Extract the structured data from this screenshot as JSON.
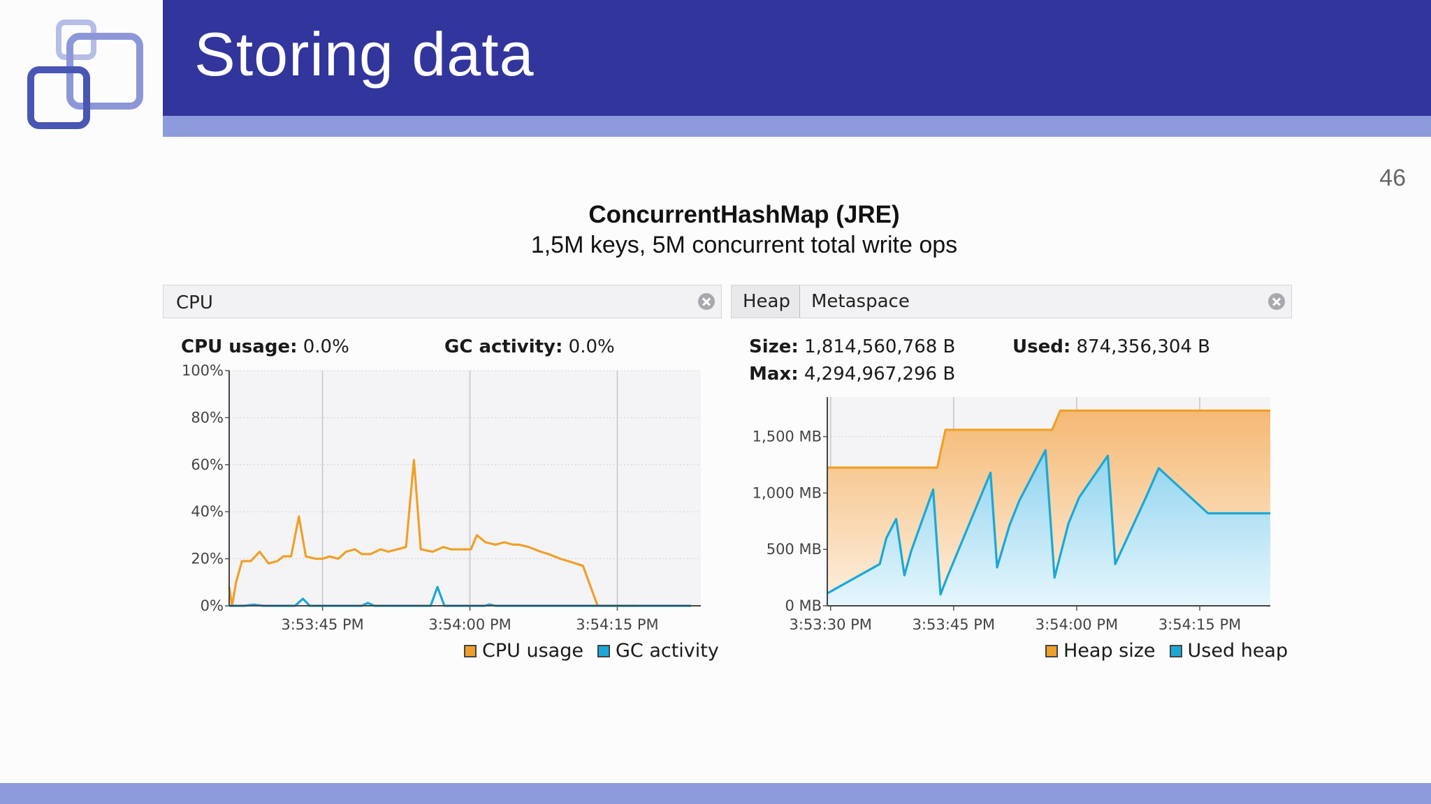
{
  "slide": {
    "title": "Storing data",
    "page_number": "46",
    "heading": "ConcurrentHashMap (JRE)",
    "subheading": "1,5M keys, 5M concurrent total write ops"
  },
  "colors": {
    "header": "#31359c",
    "band": "#8c9bdc",
    "orange": "#f0a028",
    "blue": "#1aa8d8"
  },
  "cpu_panel": {
    "tab_label": "CPU",
    "stats": [
      {
        "label": "CPU usage:",
        "value": "0.0%"
      },
      {
        "label": "GC activity:",
        "value": "0.0%"
      }
    ],
    "close_icon": "close-circle-icon"
  },
  "heap_panel": {
    "tabs": [
      "Heap",
      "Metaspace"
    ],
    "stats": [
      {
        "label": "Size:",
        "value": "1,814,560,768 B"
      },
      {
        "label": "Used:",
        "value": "874,356,304 B"
      },
      {
        "label": "Max:",
        "value": "4,294,967,296 B"
      }
    ],
    "close_icon": "close-circle-icon"
  },
  "chart_data": [
    {
      "type": "line",
      "name": "cpu",
      "ylim": [
        0,
        100
      ],
      "y_ticks": [
        "0%",
        "20%",
        "40%",
        "60%",
        "80%",
        "100%"
      ],
      "y_tick_values": [
        0,
        20,
        40,
        60,
        80,
        100
      ],
      "x_ticks": [
        "3:53:45 PM",
        "3:54:00 PM",
        "3:54:15 PM"
      ],
      "x_tick_values": [
        10,
        25,
        40
      ],
      "xlim": [
        0.5,
        48.5
      ],
      "grid": true,
      "legend_position": "bottom-right",
      "series": [
        {
          "name": "CPU usage",
          "color": "#f0a028",
          "x": [
            0.5,
            0.8,
            1.2,
            1.8,
            2.7,
            3.6,
            4.5,
            5.4,
            6.0,
            6.8,
            7.6,
            8.3,
            9.3,
            10.0,
            10.7,
            11.6,
            12.4,
            13.3,
            14.0,
            14.9,
            15.9,
            16.7,
            17.6,
            18.5,
            19.3,
            20.0,
            21.2,
            22.3,
            23.1,
            24.3,
            25.1,
            25.7,
            26.6,
            27.6,
            28.5,
            29.4,
            30.0,
            31.0,
            32.2,
            33.0,
            34.2,
            35.0,
            36.5,
            38.0,
            39.5,
            40.8,
            41.2,
            41.5,
            41.7
          ],
          "y": [
            8,
            0,
            10,
            19,
            19,
            23,
            18,
            19,
            21,
            21,
            38,
            21,
            20,
            20,
            21,
            20,
            23,
            24,
            22,
            22,
            24,
            23,
            24,
            25,
            62,
            24,
            23,
            25,
            24,
            24,
            24,
            30,
            27,
            26,
            27,
            26,
            26,
            25,
            23,
            22,
            20,
            19,
            17,
            0,
            0,
            0,
            0,
            0,
            0
          ]
        },
        {
          "name": "GC activity",
          "color": "#1aa8d8",
          "x": [
            0.5,
            2.0,
            3.0,
            4.0,
            7.2,
            8.0,
            8.7,
            14.0,
            14.6,
            15.3,
            21.0,
            21.7,
            22.4,
            26.5,
            27.0,
            27.6,
            47.5
          ],
          "y": [
            0,
            0,
            0.5,
            0,
            0,
            3,
            0,
            0,
            1.2,
            0,
            0,
            8,
            0,
            0,
            0.6,
            0,
            0
          ]
        }
      ]
    },
    {
      "type": "area",
      "name": "heap",
      "ylabel": "",
      "ylim": [
        0,
        1850
      ],
      "y_ticks": [
        "0 MB",
        "500 MB",
        "1,000 MB",
        "1,500 MB"
      ],
      "y_tick_values": [
        0,
        500,
        1000,
        1500
      ],
      "x_ticks": [
        "3:53:30 PM",
        "3:53:45 PM",
        "3:54:00 PM",
        "3:54:15 PM"
      ],
      "x_tick_values": [
        0,
        15,
        30,
        45
      ],
      "xlim": [
        -0.4,
        53.6
      ],
      "grid": true,
      "legend_position": "bottom-right",
      "series": [
        {
          "name": "Heap size",
          "color": "#f0a028",
          "x": [
            -0.4,
            13.0,
            14.0,
            27.0,
            28.0,
            53.6
          ],
          "y": [
            1225,
            1225,
            1560,
            1560,
            1730,
            1730
          ]
        },
        {
          "name": "Used heap",
          "color": "#1aa8d8",
          "x": [
            -0.4,
            6.0,
            6.8,
            8.0,
            9.0,
            9.8,
            12.5,
            13.4,
            14.2,
            19.5,
            20.3,
            21.8,
            23.0,
            26.2,
            27.3,
            29.0,
            30.3,
            33.8,
            34.7,
            38.5,
            40.0,
            46.0,
            53.6
          ],
          "y": [
            110,
            370,
            600,
            770,
            270,
            480,
            1030,
            100,
            250,
            1180,
            340,
            710,
            930,
            1380,
            250,
            730,
            960,
            1330,
            370,
            970,
            1220,
            820,
            820
          ]
        }
      ]
    }
  ]
}
